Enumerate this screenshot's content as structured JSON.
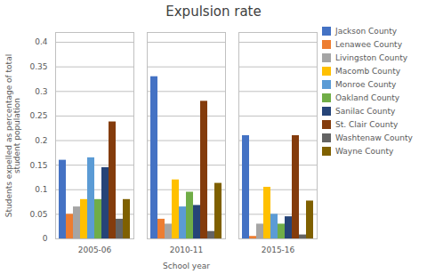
{
  "chart_data": {
    "type": "bar",
    "title": "Expulsion rate",
    "xlabel": "School year",
    "ylabel": "Students expelled as percentage of total\nstudent population",
    "categories": [
      "2005-06",
      "2010-11",
      "2015-16"
    ],
    "series": [
      {
        "name": "Jackson County",
        "color": "#4472C4",
        "values": [
          0.16,
          0.33,
          0.21
        ]
      },
      {
        "name": "Lenawee County",
        "color": "#ED7D31",
        "values": [
          0.05,
          0.04,
          0.005
        ]
      },
      {
        "name": "Livingston County",
        "color": "#A5A5A5",
        "values": [
          0.065,
          0.03,
          0.03
        ]
      },
      {
        "name": "Macomb County",
        "color": "#FFC000",
        "values": [
          0.08,
          0.12,
          0.105
        ]
      },
      {
        "name": "Monroe County",
        "color": "#5B9BD5",
        "values": [
          0.165,
          0.065,
          0.05
        ]
      },
      {
        "name": "Oakland County",
        "color": "#70AD47",
        "values": [
          0.08,
          0.095,
          0.03
        ]
      },
      {
        "name": "Sanilac County",
        "color": "#264478",
        "values": [
          0.145,
          0.068,
          0.045
        ]
      },
      {
        "name": "St. Clair County",
        "color": "#843C0C",
        "values": [
          0.238,
          0.28,
          0.21
        ]
      },
      {
        "name": "Washtenaw County",
        "color": "#636363",
        "values": [
          0.04,
          0.015,
          0.008
        ]
      },
      {
        "name": "Wayne County",
        "color": "#7F6000",
        "values": [
          0.08,
          0.113,
          0.077
        ]
      }
    ],
    "ylim": [
      0,
      0.42
    ],
    "yticks": [
      0,
      0.05,
      0.1,
      0.15,
      0.2,
      0.25,
      0.3,
      0.35,
      0.4
    ],
    "grid": true,
    "legend": "right"
  }
}
